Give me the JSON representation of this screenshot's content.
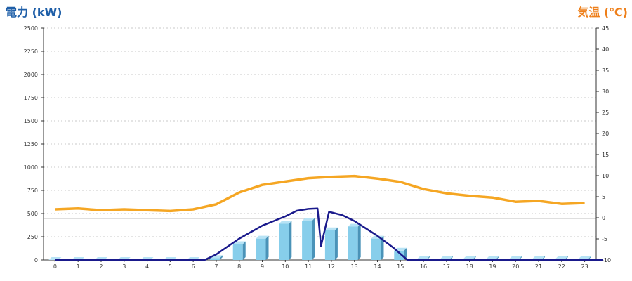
{
  "chart_data": {
    "type": "bar+line",
    "y_left_label": "電力 (kW)",
    "y_right_label": "気温 (℃)",
    "categories": [
      "0",
      "1",
      "2",
      "3",
      "4",
      "5",
      "6",
      "7",
      "8",
      "9",
      "10",
      "11",
      "12",
      "13",
      "14",
      "15",
      "16",
      "17",
      "18",
      "19",
      "20",
      "21",
      "22",
      "23"
    ],
    "y_left_ticks": [
      "0",
      "250",
      "500",
      "750",
      "1000",
      "1250",
      "1500",
      "1750",
      "2000",
      "2250",
      "2500"
    ],
    "y_right_ticks": [
      "-10",
      "-5",
      "0",
      "5",
      "10",
      "15",
      "20",
      "25",
      "30",
      "35",
      "40",
      "45"
    ],
    "ylim_left": [
      0,
      2500
    ],
    "ylim_right": [
      -10,
      45
    ],
    "grid": true,
    "reference_line_left": 450,
    "series": [
      {
        "kind": "bar",
        "axis": "left",
        "color": "#87ceeb",
        "values": [
          0,
          0,
          0,
          0,
          0,
          0,
          0,
          20,
          170,
          230,
          390,
          420,
          320,
          360,
          230,
          100,
          10,
          10,
          10,
          10,
          10,
          10,
          10,
          10
        ]
      },
      {
        "kind": "line",
        "axis": "left",
        "color": "#1a1a8c",
        "points": [
          [
            0,
            0
          ],
          [
            6.5,
            0
          ],
          [
            7,
            60
          ],
          [
            8,
            230
          ],
          [
            9,
            370
          ],
          [
            10,
            470
          ],
          [
            10.5,
            530
          ],
          [
            11,
            550
          ],
          [
            11.4,
            555
          ],
          [
            11.55,
            150
          ],
          [
            11.9,
            520
          ],
          [
            12.5,
            480
          ],
          [
            13,
            420
          ],
          [
            14,
            260
          ],
          [
            14.7,
            130
          ],
          [
            15.3,
            0
          ],
          [
            23.8,
            0
          ]
        ]
      },
      {
        "kind": "line",
        "axis": "right",
        "color": "#f5a623",
        "points": [
          [
            0,
            2
          ],
          [
            1,
            2.2
          ],
          [
            2,
            1.8
          ],
          [
            3,
            2
          ],
          [
            4,
            1.8
          ],
          [
            5,
            1.6
          ],
          [
            6,
            2
          ],
          [
            7,
            3.2
          ],
          [
            8,
            6
          ],
          [
            9,
            7.8
          ],
          [
            10,
            8.6
          ],
          [
            11,
            9.4
          ],
          [
            12,
            9.7
          ],
          [
            13,
            9.9
          ],
          [
            14,
            9.3
          ],
          [
            15,
            8.5
          ],
          [
            16,
            6.8
          ],
          [
            17,
            5.8
          ],
          [
            18,
            5.2
          ],
          [
            19,
            4.8
          ],
          [
            20,
            3.8
          ],
          [
            21,
            4
          ],
          [
            22,
            3.3
          ],
          [
            23,
            3.5
          ]
        ]
      }
    ]
  }
}
